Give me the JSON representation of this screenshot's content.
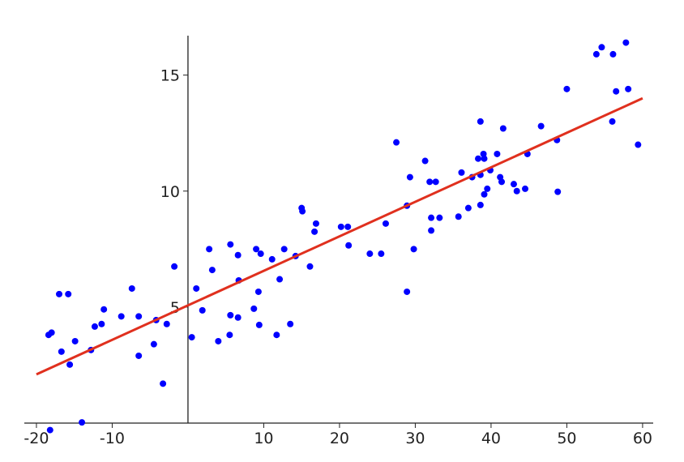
{
  "chart_data": {
    "type": "scatter",
    "x": [
      -18.4,
      -18.0,
      -18.2,
      -17.0,
      -15.8,
      -16.7,
      -15.6,
      -14.9,
      -14.0,
      -12.8,
      -12.3,
      -11.4,
      -11.1,
      -8.8,
      -7.4,
      -6.5,
      -6.5,
      -4.5,
      -4.2,
      -3.3,
      -2.8,
      -1.8,
      0.5,
      1.1,
      1.9,
      2.8,
      3.2,
      4.0,
      5.5,
      5.6,
      5.6,
      6.6,
      6.6,
      6.7,
      8.7,
      9.0,
      9.3,
      9.4,
      9.6,
      11.1,
      11.7,
      12.1,
      12.7,
      13.5,
      14.2,
      15.0,
      15.1,
      16.1,
      16.7,
      16.9,
      20.2,
      21.1,
      21.2,
      24.0,
      25.5,
      26.1,
      27.5,
      28.9,
      28.9,
      29.3,
      29.8,
      31.3,
      31.9,
      32.1,
      32.1,
      32.7,
      33.2,
      35.7,
      36.1,
      37.0,
      37.5,
      38.3,
      38.6,
      38.6,
      38.6,
      39.0,
      39.1,
      39.1,
      39.5,
      39.9,
      40.8,
      41.2,
      41.4,
      41.6,
      43.0,
      43.4,
      44.5,
      44.8,
      46.6,
      48.7,
      48.8,
      50.0,
      53.9,
      54.6,
      56.1,
      56.0,
      56.5,
      57.8,
      58.1,
      59.4
    ],
    "values": [
      3.8,
      3.9,
      -0.3,
      5.56,
      5.56,
      3.08,
      2.52,
      3.53,
      0.03,
      3.15,
      4.16,
      4.27,
      4.9,
      4.6,
      5.8,
      4.6,
      2.9,
      3.4,
      4.44,
      1.7,
      4.27,
      6.75,
      3.7,
      5.8,
      4.86,
      7.5,
      6.6,
      3.53,
      3.8,
      7.7,
      4.65,
      4.55,
      7.24,
      6.15,
      4.93,
      7.5,
      5.66,
      4.23,
      7.3,
      7.06,
      3.8,
      6.2,
      7.5,
      4.27,
      7.2,
      9.27,
      9.13,
      6.75,
      8.25,
      8.6,
      8.46,
      8.46,
      7.66,
      7.3,
      7.3,
      8.6,
      12.1,
      9.37,
      5.66,
      10.6,
      7.5,
      11.3,
      10.4,
      8.85,
      8.3,
      10.4,
      8.85,
      8.9,
      10.8,
      9.27,
      10.6,
      11.4,
      13.0,
      10.7,
      9.4,
      11.6,
      11.4,
      9.86,
      10.1,
      10.9,
      11.6,
      10.6,
      10.4,
      12.7,
      10.3,
      10.0,
      10.1,
      11.6,
      12.8,
      12.2,
      9.97,
      14.4,
      15.9,
      16.2,
      15.9,
      13.0,
      14.3,
      16.4,
      14.4,
      12.0
    ],
    "color": "#0000ff",
    "fit_line": {
      "x": [
        -20,
        60
      ],
      "values": [
        2.1,
        14.0
      ],
      "color": "#e0301e"
    },
    "xlim": [
      -21.6,
      61.4
    ],
    "ylim": [
      -1,
      16.7
    ],
    "xticks": [
      -20,
      -10,
      10,
      20,
      30,
      40,
      50,
      60
    ],
    "yticks": [
      5,
      10,
      15
    ]
  }
}
